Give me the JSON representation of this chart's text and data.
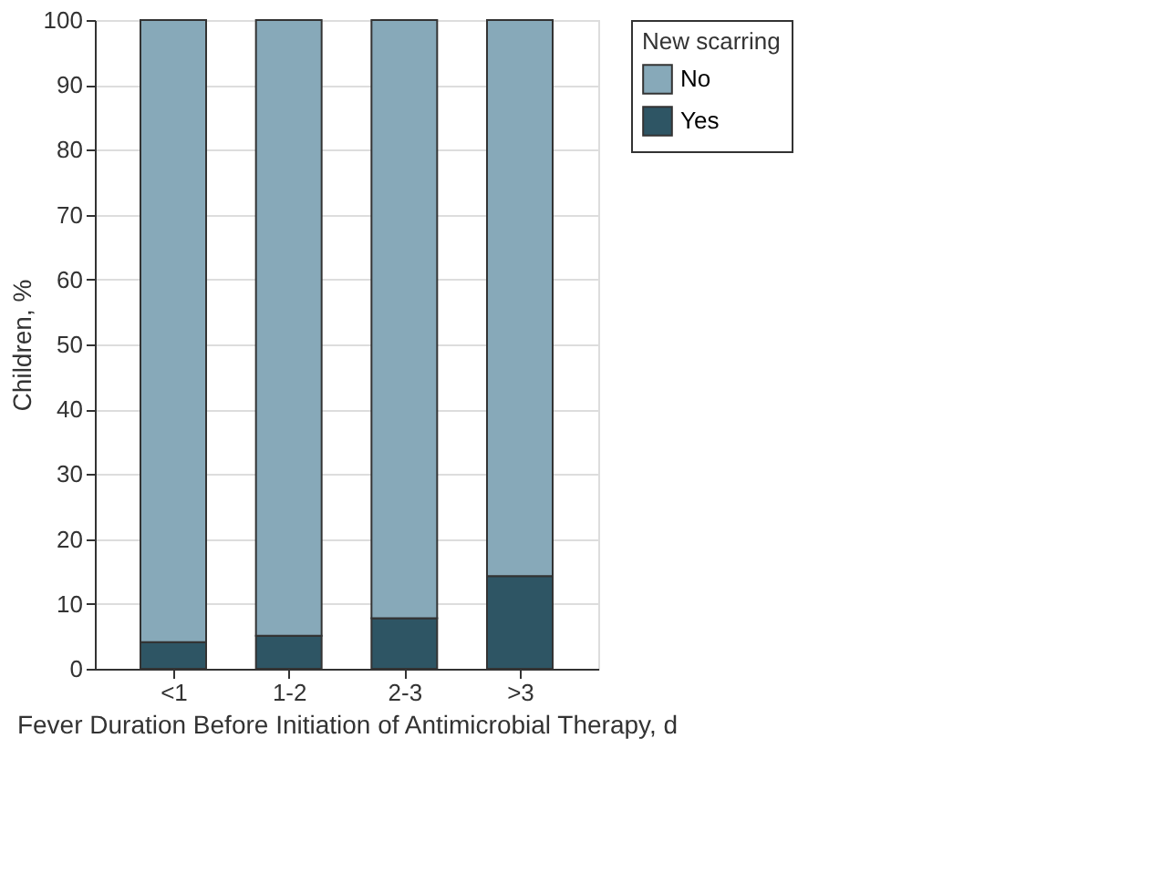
{
  "chart_data": {
    "type": "bar",
    "stacked": true,
    "categories": [
      "<1",
      "1-2",
      "2-3",
      ">3"
    ],
    "series": [
      {
        "name": "Yes",
        "color": "#2e5564",
        "values": [
          4.1,
          5.1,
          7.8,
          14.3
        ]
      },
      {
        "name": "No",
        "color": "#87a9b9",
        "values": [
          95.9,
          94.9,
          92.2,
          85.7
        ]
      }
    ],
    "xlabel": "Fever Duration Before Initiation of Antimicrobial Therapy, d",
    "ylabel": "Children, %",
    "legend_title": "New scarring",
    "ylim": [
      0,
      100
    ],
    "yticks": [
      0,
      10,
      20,
      30,
      40,
      50,
      60,
      70,
      80,
      90,
      100
    ],
    "grid": "y",
    "legend": "top right"
  }
}
